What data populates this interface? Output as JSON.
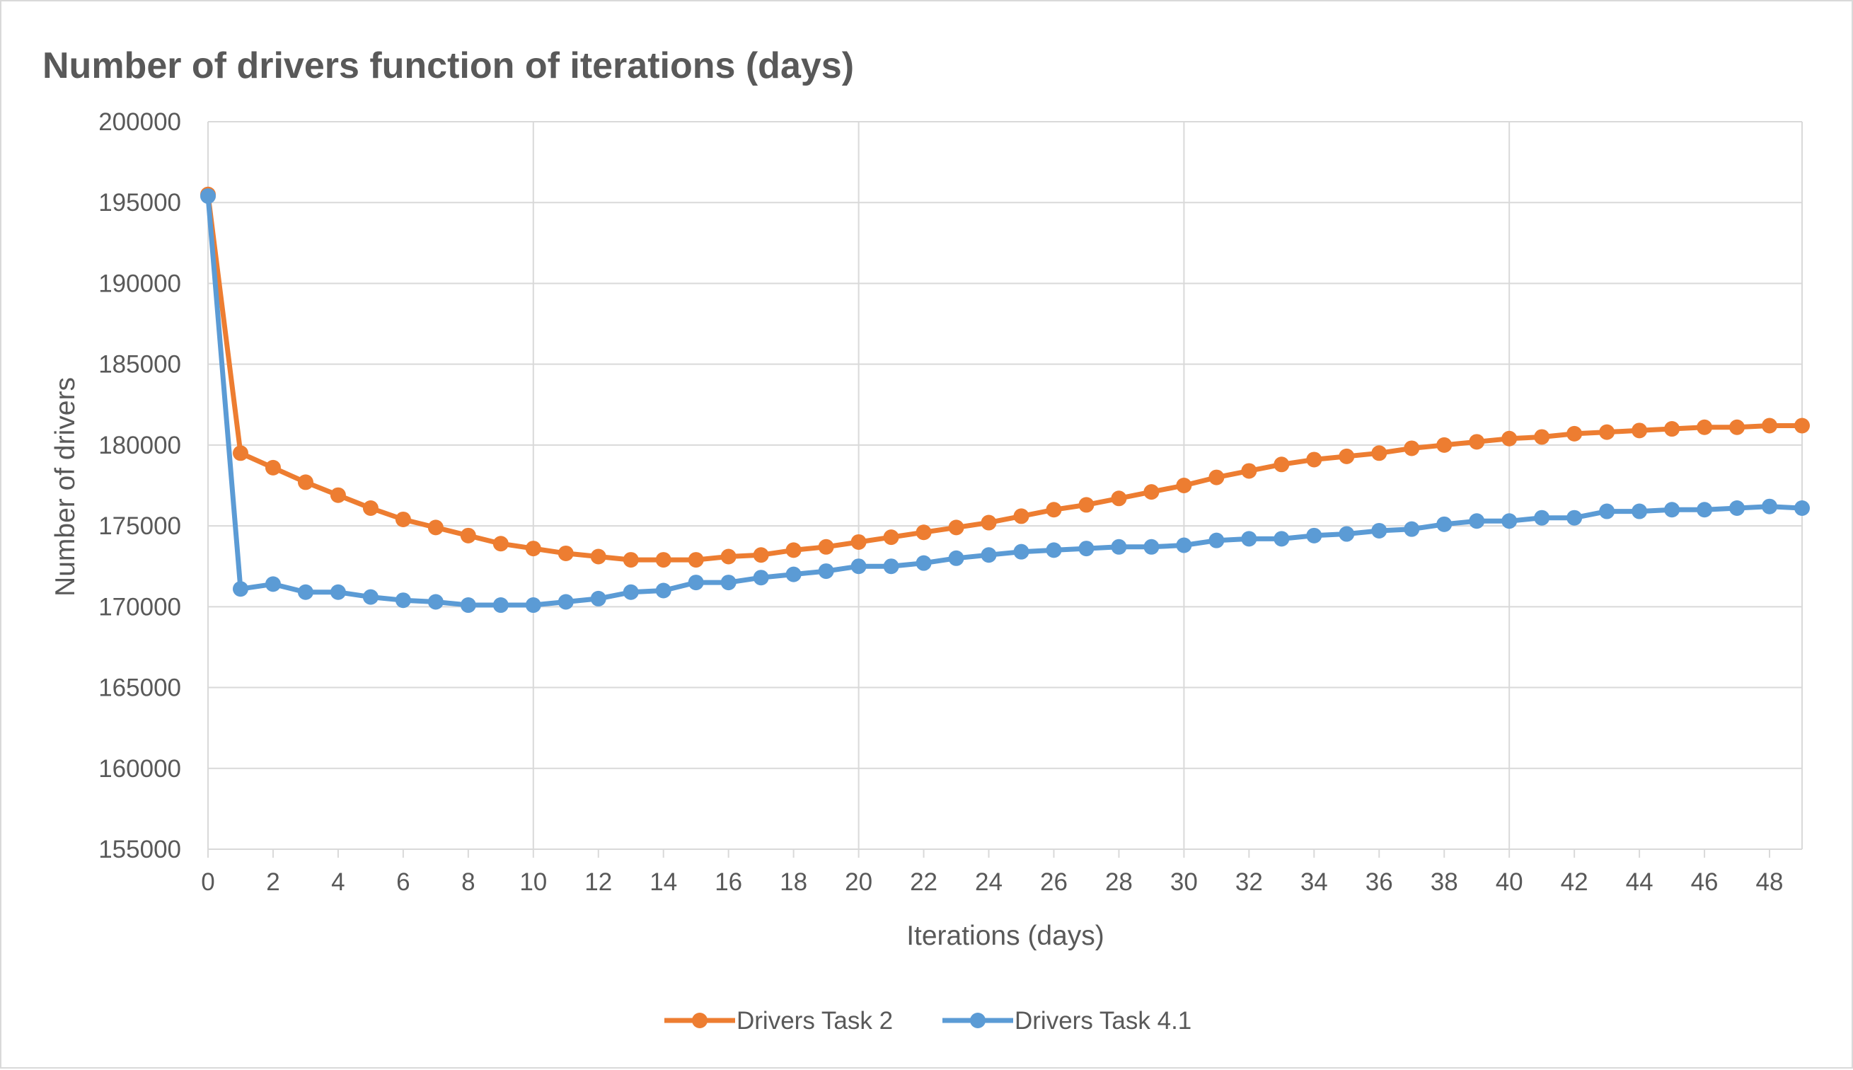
{
  "chart_data": {
    "type": "line",
    "title": "Number of drivers function of iterations (days)",
    "xlabel": "Iterations (days)",
    "ylabel": "Number of drivers",
    "xlim": [
      0,
      49
    ],
    "ylim": [
      155000,
      200000
    ],
    "x_ticks": [
      0,
      2,
      4,
      6,
      8,
      10,
      12,
      14,
      16,
      18,
      20,
      22,
      24,
      26,
      28,
      30,
      32,
      34,
      36,
      38,
      40,
      42,
      44,
      46,
      48
    ],
    "y_ticks": [
      155000,
      160000,
      165000,
      170000,
      175000,
      180000,
      185000,
      190000,
      195000,
      200000
    ],
    "grid": true,
    "legend_position": "bottom",
    "x": [
      0,
      1,
      2,
      3,
      4,
      5,
      6,
      7,
      8,
      9,
      10,
      11,
      12,
      13,
      14,
      15,
      16,
      17,
      18,
      19,
      20,
      21,
      22,
      23,
      24,
      25,
      26,
      27,
      28,
      29,
      30,
      31,
      32,
      33,
      34,
      35,
      36,
      37,
      38,
      39,
      40,
      41,
      42,
      43,
      44,
      45,
      46,
      47,
      48,
      49
    ],
    "series": [
      {
        "name": "Drivers Task 2",
        "color": "#ed7d31",
        "values": [
          195500,
          179500,
          178600,
          177700,
          176900,
          176100,
          175400,
          174900,
          174400,
          173900,
          173600,
          173300,
          173100,
          172900,
          172900,
          172900,
          173100,
          173200,
          173500,
          173700,
          174000,
          174300,
          174600,
          174900,
          175200,
          175600,
          176000,
          176300,
          176700,
          177100,
          177500,
          178000,
          178400,
          178800,
          179100,
          179300,
          179500,
          179800,
          180000,
          180200,
          180400,
          180500,
          180700,
          180800,
          180900,
          181000,
          181100,
          181100,
          181200,
          181200
        ]
      },
      {
        "name": "Drivers Task 4.1",
        "color": "#5b9bd5",
        "values": [
          195400,
          171100,
          171400,
          170900,
          170900,
          170600,
          170400,
          170300,
          170100,
          170100,
          170100,
          170300,
          170500,
          170900,
          171000,
          171500,
          171500,
          171800,
          172000,
          172200,
          172500,
          172500,
          172700,
          173000,
          173200,
          173400,
          173500,
          173600,
          173700,
          173700,
          173800,
          174100,
          174200,
          174200,
          174400,
          174500,
          174700,
          174800,
          175100,
          175300,
          175300,
          175500,
          175500,
          175900,
          175900,
          176000,
          176000,
          176100,
          176200,
          176100
        ]
      }
    ]
  }
}
